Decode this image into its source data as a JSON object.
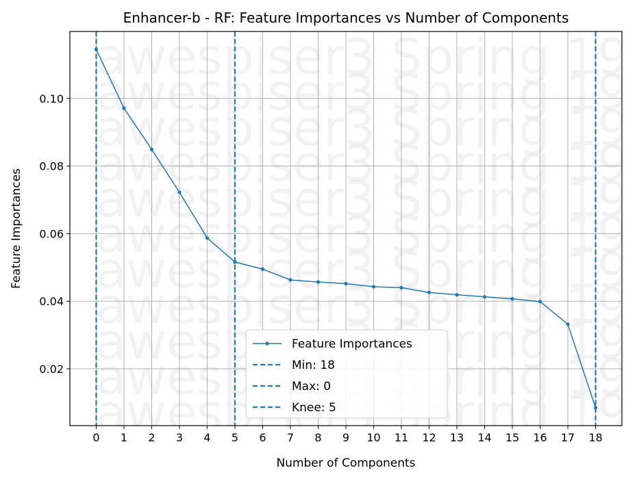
{
  "chart_data": {
    "type": "line",
    "title": "Enhancer-b - RF: Feature Importances vs Number of Components",
    "xlabel": "Number of Components",
    "ylabel": "Feature Importances",
    "x": [
      0,
      1,
      2,
      3,
      4,
      5,
      6,
      7,
      8,
      9,
      10,
      11,
      12,
      13,
      14,
      15,
      16,
      17,
      18
    ],
    "series": [
      {
        "name": "Feature Importances",
        "values": [
          0.1145,
          0.0971,
          0.0849,
          0.0722,
          0.0587,
          0.0516,
          0.0495,
          0.0463,
          0.0457,
          0.0452,
          0.0443,
          0.044,
          0.0426,
          0.0419,
          0.0413,
          0.0407,
          0.0399,
          0.0332,
          0.0085
        ]
      }
    ],
    "vlines": [
      {
        "name": "Min: 18",
        "x": 18
      },
      {
        "name": "Max: 0",
        "x": 0
      },
      {
        "name": "Knee: 5",
        "x": 5
      }
    ],
    "xlim": [
      -0.95,
      18.95
    ],
    "ylim": [
      0.0032,
      0.1198
    ],
    "yticks": [
      0.02,
      0.04,
      0.06,
      0.08,
      0.1
    ],
    "ytick_labels": [
      "0.02",
      "0.04",
      "0.06",
      "0.08",
      "0.10"
    ],
    "grid": true,
    "legend_position": "lower-center",
    "watermark": "awespiser3 Spring 19",
    "colors": {
      "line": "#1f77b4",
      "grid": "#b0b0b0"
    }
  }
}
